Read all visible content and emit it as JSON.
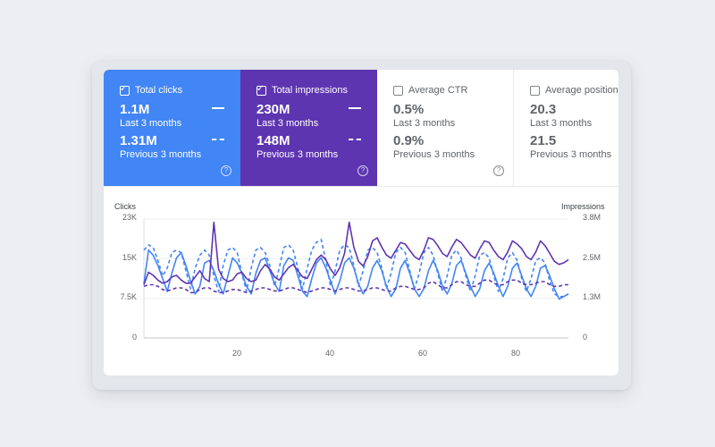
{
  "metrics": [
    {
      "label": "Total clicks",
      "checked": true,
      "value": "1.1M",
      "period": "Last 3 months",
      "prev_value": "1.31M",
      "prev_period": "Previous 3 months",
      "color": "#4285f4",
      "help": "?"
    },
    {
      "label": "Total impressions",
      "checked": true,
      "value": "230M",
      "period": "Last 3 months",
      "prev_value": "148M",
      "prev_period": "Previous 3 months",
      "color": "#5e35b1",
      "help": "?"
    },
    {
      "label": "Average CTR",
      "checked": false,
      "value": "0.5%",
      "period": "Last 3 months",
      "prev_value": "0.9%",
      "prev_period": "Previous 3 months",
      "help": "?"
    },
    {
      "label": "Average position",
      "checked": false,
      "value": "20.3",
      "period": "Last 3 months",
      "prev_value": "21.5",
      "prev_period": "Previous 3 months"
    }
  ],
  "chart_data": {
    "type": "line",
    "left_axis": {
      "title": "Clicks",
      "ticks": [
        "0",
        "7.5K",
        "15K",
        "23K"
      ],
      "range": [
        0,
        23000
      ]
    },
    "right_axis": {
      "title": "Impressions",
      "ticks": [
        "0",
        "1.3M",
        "2.5M",
        "3.8M"
      ],
      "range": [
        0,
        3800000
      ]
    },
    "x_ticks": [
      20,
      40,
      60,
      80
    ],
    "x_range": [
      1,
      92
    ],
    "grid": true,
    "series": [
      {
        "color": "#4285f4",
        "dash": false,
        "axis": "left",
        "values": [
          10500,
          17000,
          16000,
          14000,
          11500,
          9000,
          12500,
          15500,
          16500,
          14000,
          11000,
          8500,
          10000,
          14500,
          15000,
          13000,
          10500,
          8500,
          12000,
          15500,
          14500,
          12500,
          10000,
          8500,
          12500,
          15000,
          15500,
          13000,
          10500,
          9000,
          14000,
          15500,
          15000,
          12000,
          9000,
          8000,
          11500,
          14500,
          15500,
          13500,
          11000,
          8500,
          11000,
          14500,
          15500,
          13500,
          10500,
          8500,
          10000,
          13500,
          15000,
          13000,
          10000,
          8000,
          9500,
          13500,
          15000,
          12500,
          9500,
          8000,
          9500,
          13000,
          15000,
          13000,
          10000,
          8500,
          10500,
          14000,
          15000,
          12500,
          10000,
          8000,
          9500,
          13000,
          14500,
          12500,
          10000,
          8000,
          10000,
          13500,
          14500,
          12000,
          9500,
          8000,
          10000,
          13500,
          14000,
          12000,
          9500,
          7500,
          8000,
          8500
        ]
      },
      {
        "color": "#4285f4",
        "dash": true,
        "axis": "left",
        "values": [
          17000,
          18000,
          17500,
          15000,
          12000,
          13500,
          16500,
          17000,
          16500,
          13000,
          9500,
          13500,
          16000,
          17000,
          16000,
          12000,
          9000,
          14000,
          17000,
          17500,
          16500,
          12500,
          9000,
          13500,
          17000,
          17500,
          16500,
          14000,
          10000,
          13500,
          17500,
          18000,
          17000,
          13500,
          9500,
          13500,
          17000,
          18500,
          19000,
          15000,
          10000,
          13000,
          17000,
          18000,
          17500,
          14000,
          10000,
          13000,
          17000,
          17500,
          16500,
          13500,
          9500,
          12500,
          16500,
          17500,
          16500,
          13000,
          9500,
          12500,
          16500,
          17500,
          16000,
          12500,
          9000,
          12000,
          16000,
          17000,
          15500,
          12000,
          9000,
          12000,
          16000,
          16500,
          15500,
          12000,
          9000,
          11500,
          15500,
          16500,
          15000,
          11500,
          9000,
          11500,
          15000,
          15500,
          14500,
          11000,
          8500,
          8000,
          8000,
          8500
        ]
      },
      {
        "color": "#5e35b1",
        "dash": false,
        "axis": "right",
        "values": [
          1700000,
          2100000,
          2000000,
          1850000,
          1750000,
          1800000,
          1950000,
          2000000,
          1850000,
          1750000,
          1750000,
          1950000,
          2150000,
          1900000,
          1800000,
          3700000,
          2200000,
          1900000,
          1800000,
          1850000,
          2050000,
          2100000,
          1900000,
          1800000,
          1850000,
          2150000,
          2350000,
          2200000,
          1950000,
          1850000,
          2050000,
          2250000,
          2350000,
          2150000,
          1950000,
          1900000,
          2200000,
          2500000,
          2650000,
          2500000,
          2200000,
          2000000,
          2250000,
          2700000,
          3700000,
          2900000,
          2450000,
          2300000,
          2600000,
          3100000,
          3200000,
          2900000,
          2650000,
          2550000,
          2800000,
          3050000,
          3000000,
          2800000,
          2600000,
          2500000,
          2800000,
          3200000,
          3150000,
          2950000,
          2700000,
          2600000,
          2900000,
          3150000,
          3050000,
          2850000,
          2650000,
          2550000,
          2850000,
          3100000,
          3050000,
          2800000,
          2600000,
          2500000,
          2750000,
          3100000,
          3000000,
          2850000,
          2600000,
          2500000,
          2750000,
          3100000,
          2950000,
          2700000,
          2450000,
          2350000,
          2400000,
          2500000
        ]
      },
      {
        "color": "#5e35b1",
        "dash": true,
        "axis": "right",
        "values": [
          1650000,
          1700000,
          1700000,
          1650000,
          1550000,
          1500000,
          1550000,
          1600000,
          1600000,
          1550000,
          1450000,
          1450000,
          1550000,
          1600000,
          1600000,
          1500000,
          1450000,
          1450000,
          1500000,
          1550000,
          1550000,
          1500000,
          1450000,
          1500000,
          1550000,
          1600000,
          1600000,
          1550000,
          1500000,
          1500000,
          1550000,
          1600000,
          1600000,
          1550000,
          1500000,
          1450000,
          1500000,
          1550000,
          1600000,
          1600000,
          1550000,
          1500000,
          1550000,
          1600000,
          1600000,
          1550000,
          1500000,
          1500000,
          1550000,
          1600000,
          1600000,
          1550000,
          1500000,
          1500000,
          1600000,
          1650000,
          1650000,
          1600000,
          1550000,
          1550000,
          1600000,
          1750000,
          1800000,
          1700000,
          1600000,
          1600000,
          1700000,
          1800000,
          1800000,
          1700000,
          1650000,
          1650000,
          1750000,
          1850000,
          1850000,
          1750000,
          1700000,
          1700000,
          1800000,
          1850000,
          1850000,
          1750000,
          1700000,
          1700000,
          1750000,
          1800000,
          1800000,
          1700000,
          1650000,
          1650000,
          1700000,
          1700000
        ]
      }
    ]
  }
}
